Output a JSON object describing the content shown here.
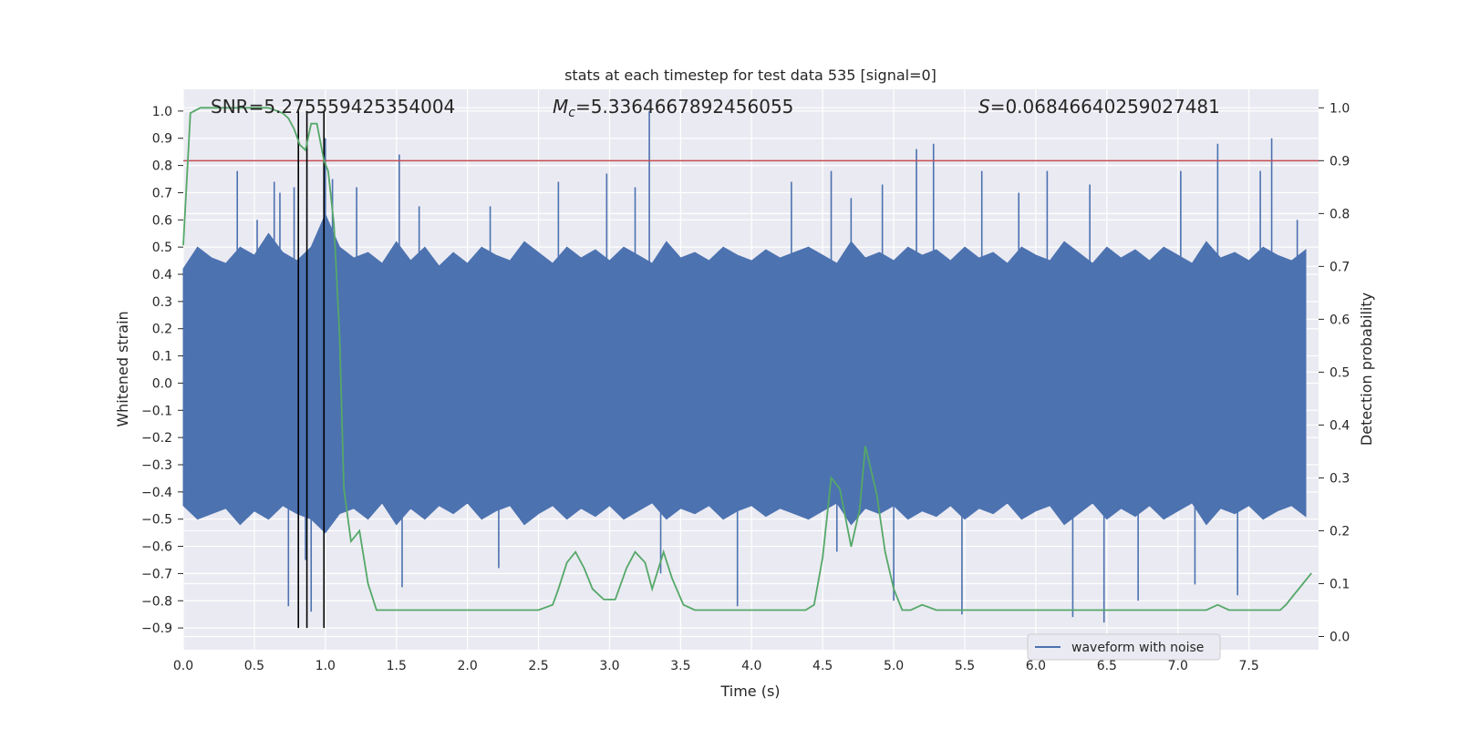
{
  "chart_data": {
    "type": "line",
    "title": "stats at each timestep for test data 535 [signal=0]",
    "xlabel": "Time (s)",
    "ylabel": "Whitened strain",
    "y2label": "Detection probability",
    "xlim": [
      0,
      7.99
    ],
    "ylim": [
      -0.98,
      1.08
    ],
    "y2lim": [
      -0.025,
      1.035
    ],
    "xticks": [
      "0.0",
      "0.5",
      "1.0",
      "1.5",
      "2.0",
      "2.5",
      "3.0",
      "3.5",
      "4.0",
      "4.5",
      "5.0",
      "5.5",
      "6.0",
      "6.5",
      "7.0",
      "7.5"
    ],
    "yticks": [
      "−0.9",
      "−0.8",
      "−0.7",
      "−0.6",
      "−0.5",
      "−0.4",
      "−0.3",
      "−0.2",
      "−0.1",
      "0.0",
      "0.1",
      "0.2",
      "0.3",
      "0.4",
      "0.5",
      "0.6",
      "0.7",
      "0.8",
      "0.9",
      "1.0"
    ],
    "y2ticks": [
      "0.0",
      "0.1",
      "0.2",
      "0.3",
      "0.4",
      "0.5",
      "0.6",
      "0.7",
      "0.8",
      "0.9",
      "1.0"
    ],
    "grid": true,
    "legend": {
      "placement": "lower-right",
      "entries": [
        "waveform with noise"
      ]
    },
    "annotations": {
      "snr": {
        "label": "SNR",
        "value": "=5.275559425354004"
      },
      "mc": {
        "symbol": "M",
        "subscript": "c",
        "value": "=5.3364667892456055"
      },
      "s": {
        "symbol": "S",
        "value": "=0.06846640259027481"
      }
    },
    "threshold_line": {
      "y2": 0.9,
      "color": "#c44e52"
    },
    "vertical_lines": {
      "x": [
        0.81,
        0.87,
        0.99
      ],
      "y_from": -0.9,
      "y_to": 1.0,
      "color": "#000000"
    },
    "waveform_envelope": {
      "name": "waveform with noise",
      "color": "#4c72b0",
      "x_step": 0.1,
      "upper": [
        0.42,
        0.5,
        0.46,
        0.44,
        0.5,
        0.47,
        0.55,
        0.48,
        0.45,
        0.5,
        0.62,
        0.5,
        0.46,
        0.48,
        0.44,
        0.52,
        0.45,
        0.5,
        0.43,
        0.48,
        0.44,
        0.5,
        0.47,
        0.45,
        0.52,
        0.48,
        0.44,
        0.5,
        0.46,
        0.49,
        0.45,
        0.5,
        0.47,
        0.44,
        0.52,
        0.46,
        0.48,
        0.45,
        0.5,
        0.47,
        0.45,
        0.49,
        0.46,
        0.48,
        0.5,
        0.47,
        0.44,
        0.52,
        0.46,
        0.48,
        0.45,
        0.5,
        0.47,
        0.49,
        0.45,
        0.5,
        0.46,
        0.48,
        0.44,
        0.5,
        0.47,
        0.45,
        0.52,
        0.48,
        0.44,
        0.5,
        0.46,
        0.49,
        0.45,
        0.5,
        0.47,
        0.44,
        0.52,
        0.46,
        0.48,
        0.45,
        0.5,
        0.47,
        0.45,
        0.49
      ],
      "lower": [
        -0.45,
        -0.5,
        -0.48,
        -0.46,
        -0.52,
        -0.47,
        -0.5,
        -0.45,
        -0.48,
        -0.5,
        -0.55,
        -0.48,
        -0.46,
        -0.5,
        -0.44,
        -0.52,
        -0.46,
        -0.5,
        -0.45,
        -0.48,
        -0.44,
        -0.5,
        -0.47,
        -0.45,
        -0.52,
        -0.48,
        -0.45,
        -0.5,
        -0.46,
        -0.49,
        -0.45,
        -0.5,
        -0.47,
        -0.44,
        -0.5,
        -0.46,
        -0.48,
        -0.45,
        -0.5,
        -0.47,
        -0.45,
        -0.49,
        -0.46,
        -0.48,
        -0.5,
        -0.47,
        -0.44,
        -0.52,
        -0.46,
        -0.48,
        -0.45,
        -0.5,
        -0.47,
        -0.49,
        -0.45,
        -0.5,
        -0.46,
        -0.48,
        -0.44,
        -0.5,
        -0.47,
        -0.45,
        -0.52,
        -0.48,
        -0.44,
        -0.5,
        -0.46,
        -0.49,
        -0.45,
        -0.5,
        -0.47,
        -0.44,
        -0.52,
        -0.46,
        -0.48,
        -0.45,
        -0.5,
        -0.47,
        -0.45,
        -0.49
      ]
    },
    "waveform_spikes": [
      [
        0.38,
        0.78
      ],
      [
        0.52,
        0.6
      ],
      [
        0.64,
        0.74
      ],
      [
        0.68,
        0.7
      ],
      [
        0.74,
        -0.82
      ],
      [
        0.78,
        0.72
      ],
      [
        0.86,
        -0.65
      ],
      [
        0.9,
        -0.84
      ],
      [
        1.0,
        0.9
      ],
      [
        1.05,
        0.75
      ],
      [
        1.22,
        0.72
      ],
      [
        1.52,
        0.84
      ],
      [
        1.54,
        -0.75
      ],
      [
        1.66,
        0.65
      ],
      [
        2.16,
        0.65
      ],
      [
        2.22,
        -0.68
      ],
      [
        2.64,
        0.74
      ],
      [
        2.98,
        0.77
      ],
      [
        3.18,
        0.72
      ],
      [
        3.28,
        1.0
      ],
      [
        3.36,
        -0.7
      ],
      [
        3.9,
        -0.82
      ],
      [
        4.28,
        0.74
      ],
      [
        4.56,
        0.78
      ],
      [
        4.6,
        -0.62
      ],
      [
        4.7,
        0.68
      ],
      [
        4.92,
        0.73
      ],
      [
        5.0,
        -0.8
      ],
      [
        5.16,
        0.86
      ],
      [
        5.28,
        0.88
      ],
      [
        5.48,
        -0.85
      ],
      [
        5.62,
        0.78
      ],
      [
        5.88,
        0.7
      ],
      [
        6.08,
        0.78
      ],
      [
        6.26,
        -0.86
      ],
      [
        6.38,
        0.73
      ],
      [
        6.48,
        -0.88
      ],
      [
        6.72,
        -0.8
      ],
      [
        7.02,
        0.78
      ],
      [
        7.12,
        -0.74
      ],
      [
        7.28,
        0.88
      ],
      [
        7.42,
        -0.78
      ],
      [
        7.58,
        0.78
      ],
      [
        7.66,
        0.9
      ],
      [
        7.84,
        0.6
      ]
    ],
    "series": [
      {
        "name": "detection probability",
        "axis": "y2",
        "color": "#55a868",
        "x": [
          0.0,
          0.05,
          0.12,
          0.2,
          0.3,
          0.4,
          0.5,
          0.6,
          0.7,
          0.74,
          0.78,
          0.82,
          0.86,
          0.9,
          0.94,
          0.99,
          1.02,
          1.06,
          1.1,
          1.13,
          1.18,
          1.24,
          1.3,
          1.36,
          1.42,
          1.5,
          1.56,
          1.66,
          1.8,
          2.0,
          2.2,
          2.3,
          2.4,
          2.5,
          2.6,
          2.64,
          2.7,
          2.76,
          2.82,
          2.88,
          2.96,
          3.04,
          3.12,
          3.18,
          3.25,
          3.3,
          3.38,
          3.44,
          3.52,
          3.6,
          3.8,
          4.0,
          4.2,
          4.3,
          4.38,
          4.44,
          4.5,
          4.56,
          4.62,
          4.7,
          4.76,
          4.8,
          4.88,
          4.94,
          5.0,
          5.06,
          5.12,
          5.2,
          5.3,
          5.4,
          5.46,
          5.52,
          5.6,
          5.7,
          5.8,
          6.0,
          6.2,
          6.3,
          6.5,
          6.7,
          6.9,
          7.1,
          7.2,
          7.28,
          7.36,
          7.44,
          7.52,
          7.6,
          7.66,
          7.72,
          7.76,
          7.82,
          7.88,
          7.94
        ],
        "y": [
          0.74,
          0.99,
          1.0,
          1.0,
          1.0,
          1.0,
          1.0,
          1.0,
          0.99,
          0.98,
          0.96,
          0.93,
          0.92,
          0.97,
          0.97,
          0.9,
          0.88,
          0.78,
          0.57,
          0.28,
          0.18,
          0.2,
          0.1,
          0.05,
          0.05,
          0.05,
          0.05,
          0.05,
          0.05,
          0.05,
          0.05,
          0.05,
          0.05,
          0.05,
          0.06,
          0.09,
          0.14,
          0.16,
          0.13,
          0.09,
          0.07,
          0.07,
          0.13,
          0.16,
          0.14,
          0.09,
          0.16,
          0.11,
          0.06,
          0.05,
          0.05,
          0.05,
          0.05,
          0.05,
          0.05,
          0.06,
          0.15,
          0.3,
          0.28,
          0.17,
          0.24,
          0.36,
          0.27,
          0.16,
          0.09,
          0.05,
          0.05,
          0.06,
          0.05,
          0.05,
          0.05,
          0.05,
          0.05,
          0.05,
          0.05,
          0.05,
          0.05,
          0.05,
          0.05,
          0.05,
          0.05,
          0.05,
          0.05,
          0.06,
          0.05,
          0.05,
          0.05,
          0.05,
          0.05,
          0.05,
          0.06,
          0.08,
          0.1,
          0.12
        ]
      }
    ]
  }
}
